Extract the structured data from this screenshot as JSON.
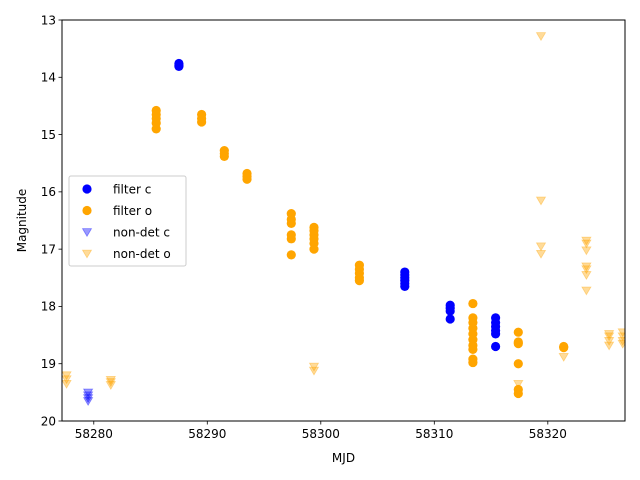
{
  "chart_data": {
    "type": "scatter",
    "title": "",
    "xlabel": "MJD",
    "ylabel": "Magnitude",
    "xlim": [
      58277.2,
      58326.8
    ],
    "ylim": [
      20,
      13
    ],
    "y_inverted": true,
    "x_ticks": [
      58280,
      58290,
      58300,
      58310,
      58320
    ],
    "x_tick_labels": [
      "58280",
      "58290",
      "58300",
      "58310",
      "58320"
    ],
    "y_ticks": [
      13,
      14,
      15,
      16,
      17,
      18,
      19,
      20
    ],
    "y_tick_labels": [
      "13",
      "14",
      "15",
      "16",
      "17",
      "18",
      "19",
      "20"
    ],
    "grid": false,
    "legend_position": "center-left",
    "series": [
      {
        "name": "filter c",
        "marker": "circle",
        "color": "#0000ff",
        "points": [
          [
            58287.5,
            13.76
          ],
          [
            58287.5,
            13.79
          ],
          [
            58287.5,
            13.81
          ],
          [
            58307.4,
            17.4
          ],
          [
            58307.4,
            17.45
          ],
          [
            58307.4,
            17.5
          ],
          [
            58307.4,
            17.55
          ],
          [
            58307.4,
            17.6
          ],
          [
            58307.4,
            17.65
          ],
          [
            58311.4,
            17.98
          ],
          [
            58311.4,
            18.03
          ],
          [
            58311.4,
            18.08
          ],
          [
            58311.4,
            18.22
          ],
          [
            58315.4,
            18.2
          ],
          [
            58315.4,
            18.28
          ],
          [
            58315.4,
            18.35
          ],
          [
            58315.4,
            18.42
          ],
          [
            58315.4,
            18.48
          ],
          [
            58315.4,
            18.7
          ]
        ]
      },
      {
        "name": "filter o",
        "marker": "circle",
        "color": "#ffa500",
        "points": [
          [
            58285.5,
            14.58
          ],
          [
            58285.5,
            14.65
          ],
          [
            58285.5,
            14.72
          ],
          [
            58285.5,
            14.8
          ],
          [
            58285.5,
            14.9
          ],
          [
            58289.5,
            14.65
          ],
          [
            58289.5,
            14.72
          ],
          [
            58289.5,
            14.78
          ],
          [
            58291.5,
            15.28
          ],
          [
            58291.5,
            15.33
          ],
          [
            58291.5,
            15.38
          ],
          [
            58293.5,
            15.68
          ],
          [
            58293.5,
            15.73
          ],
          [
            58293.5,
            15.78
          ],
          [
            58297.4,
            16.38
          ],
          [
            58297.4,
            16.48
          ],
          [
            58297.4,
            16.55
          ],
          [
            58297.4,
            16.75
          ],
          [
            58297.4,
            16.82
          ],
          [
            58297.4,
            17.1
          ],
          [
            58299.4,
            16.62
          ],
          [
            58299.4,
            16.68
          ],
          [
            58299.4,
            16.75
          ],
          [
            58299.4,
            16.82
          ],
          [
            58299.4,
            16.9
          ],
          [
            58299.4,
            17.0
          ],
          [
            58303.4,
            17.28
          ],
          [
            58303.4,
            17.35
          ],
          [
            58303.4,
            17.42
          ],
          [
            58303.4,
            17.5
          ],
          [
            58303.4,
            17.55
          ],
          [
            58313.4,
            17.95
          ],
          [
            58313.4,
            18.2
          ],
          [
            58313.4,
            18.28
          ],
          [
            58313.4,
            18.38
          ],
          [
            58313.4,
            18.48
          ],
          [
            58313.4,
            18.58
          ],
          [
            58313.4,
            18.68
          ],
          [
            58313.4,
            18.75
          ],
          [
            58313.4,
            18.92
          ],
          [
            58313.4,
            18.98
          ],
          [
            58317.4,
            18.45
          ],
          [
            58317.4,
            18.62
          ],
          [
            58317.4,
            18.65
          ],
          [
            58317.4,
            19.0
          ],
          [
            58317.4,
            19.45
          ],
          [
            58317.4,
            19.52
          ],
          [
            58321.4,
            18.7
          ],
          [
            58321.4,
            18.72
          ]
        ]
      },
      {
        "name": "non-det c",
        "marker": "triangle-down",
        "color": "#0000ff",
        "alpha": 0.4,
        "points": [
          [
            58279.5,
            19.5
          ],
          [
            58279.5,
            19.55
          ],
          [
            58279.5,
            19.6
          ],
          [
            58279.5,
            19.65
          ]
        ]
      },
      {
        "name": "non-det o",
        "marker": "triangle-down",
        "color": "#ffa500",
        "alpha": 0.4,
        "points": [
          [
            58277.6,
            19.2
          ],
          [
            58277.6,
            19.27
          ],
          [
            58277.6,
            19.35
          ],
          [
            58281.5,
            19.28
          ],
          [
            58281.5,
            19.32
          ],
          [
            58281.5,
            19.37
          ],
          [
            58299.4,
            19.05
          ],
          [
            58299.4,
            19.12
          ],
          [
            58317.4,
            19.35
          ],
          [
            58319.4,
            13.28
          ],
          [
            58319.4,
            16.15
          ],
          [
            58319.4,
            16.95
          ],
          [
            58319.4,
            17.08
          ],
          [
            58321.4,
            18.88
          ],
          [
            58323.4,
            16.85
          ],
          [
            58323.4,
            16.9
          ],
          [
            58323.4,
            17.02
          ],
          [
            58323.4,
            17.3
          ],
          [
            58323.4,
            17.35
          ],
          [
            58323.4,
            17.45
          ],
          [
            58323.4,
            17.72
          ],
          [
            58325.4,
            18.48
          ],
          [
            58325.4,
            18.52
          ],
          [
            58325.4,
            18.6
          ],
          [
            58325.4,
            18.68
          ],
          [
            58326.6,
            18.45
          ],
          [
            58326.6,
            18.52
          ],
          [
            58326.6,
            18.6
          ],
          [
            58326.6,
            18.65
          ]
        ]
      }
    ]
  }
}
